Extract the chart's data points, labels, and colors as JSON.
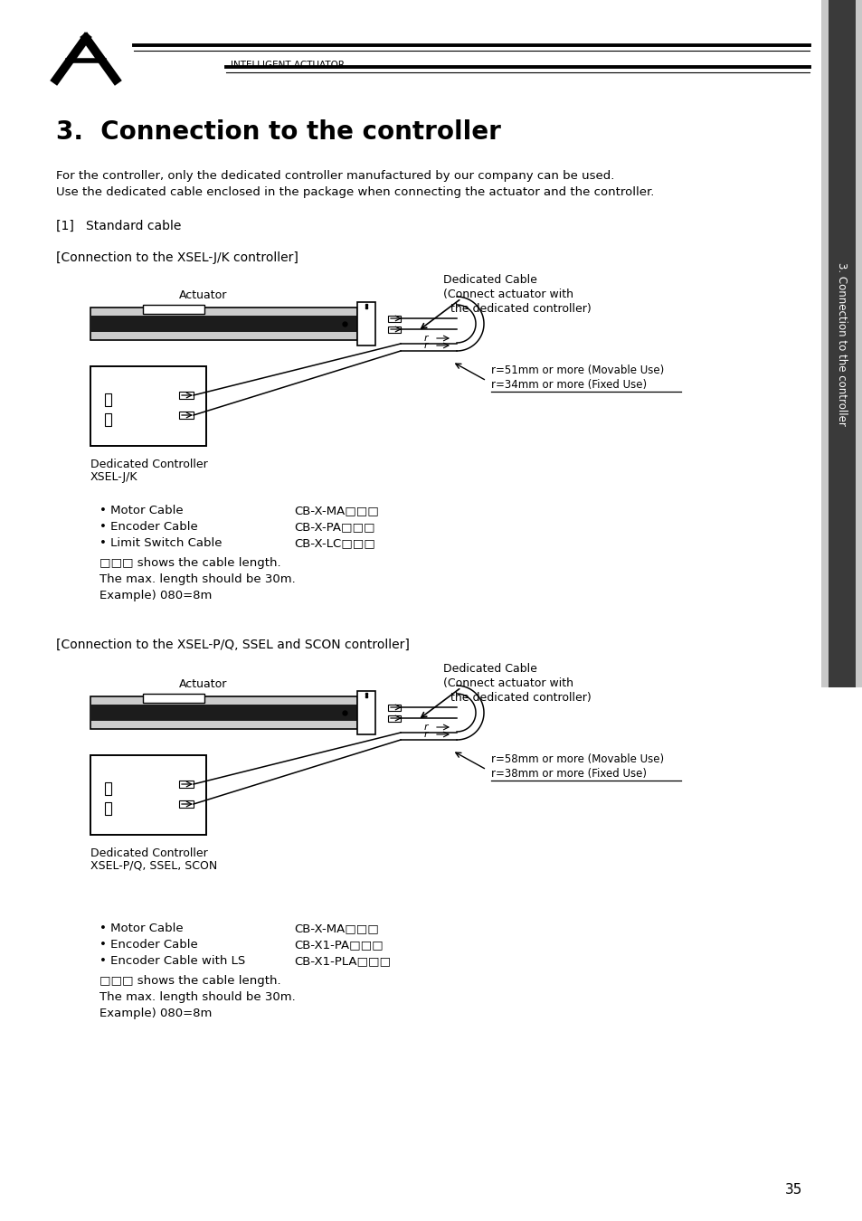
{
  "page_title": "3.  Connection to the controller",
  "header_text": "INTELLIGENT ACTUATOR",
  "intro_text1": "For the controller, only the dedicated controller manufactured by our company can be used.",
  "intro_text2": "Use the dedicated cable enclosed in the package when connecting the actuator and the controller.",
  "section1_label": "[1]   Standard cable",
  "diagram1_title": "[Connection to the XSEL-J/K controller]",
  "diagram1_dedicated_cable_l1": "Dedicated Cable",
  "diagram1_dedicated_cable_l2": "(Connect actuator with",
  "diagram1_dedicated_cable_l3": "  the dedicated controller)",
  "diagram1_actuator_label": "Actuator",
  "diagram1_controller_label1": "Dedicated Controller",
  "diagram1_controller_label2": "XSEL-J/K",
  "diagram1_radius1": "r=51mm or more (Movable Use)",
  "diagram1_radius2": "r=34mm or more (Fixed Use)",
  "bullet1_line1_label": "• Motor Cable",
  "bullet1_line1_value": "CB-X-MA□□□",
  "bullet1_line2_label": "• Encoder Cable",
  "bullet1_line2_value": "CB-X-PA□□□",
  "bullet1_line3_label": "• Limit Switch Cable",
  "bullet1_line3_value": "CB-X-LC□□□",
  "bullet1_note1": "□□□ shows the cable length.",
  "bullet1_note2": "The max. length should be 30m.",
  "bullet1_note3": "Example) 080=8m",
  "diagram2_title": "[Connection to the XSEL-P/Q, SSEL and SCON controller]",
  "diagram2_dedicated_cable_l1": "Dedicated Cable",
  "diagram2_dedicated_cable_l2": "(Connect actuator with",
  "diagram2_dedicated_cable_l3": "  the dedicated controller)",
  "diagram2_actuator_label": "Actuator",
  "diagram2_controller_label1": "Dedicated Controller",
  "diagram2_controller_label2": "XSEL-P/Q, SSEL, SCON",
  "diagram2_radius1": "r=58mm or more (Movable Use)",
  "diagram2_radius2": "r=38mm or more (Fixed Use)",
  "bullet2_line1_label": "• Motor Cable",
  "bullet2_line1_value": "CB-X-MA□□□",
  "bullet2_line2_label": "• Encoder Cable",
  "bullet2_line2_value": "CB-X1-PA□□□",
  "bullet2_line3_label": "• Encoder Cable with LS",
  "bullet2_line3_value": "CB-X1-PLA□□□",
  "bullet2_note1": "□□□ shows the cable length.",
  "bullet2_note2": "The max. length should be 30m.",
  "bullet2_note3": "Example) 080=8m",
  "sidebar_text": "3. Connection to the controller",
  "page_number": "35",
  "bg_color": "#ffffff",
  "text_color": "#000000"
}
